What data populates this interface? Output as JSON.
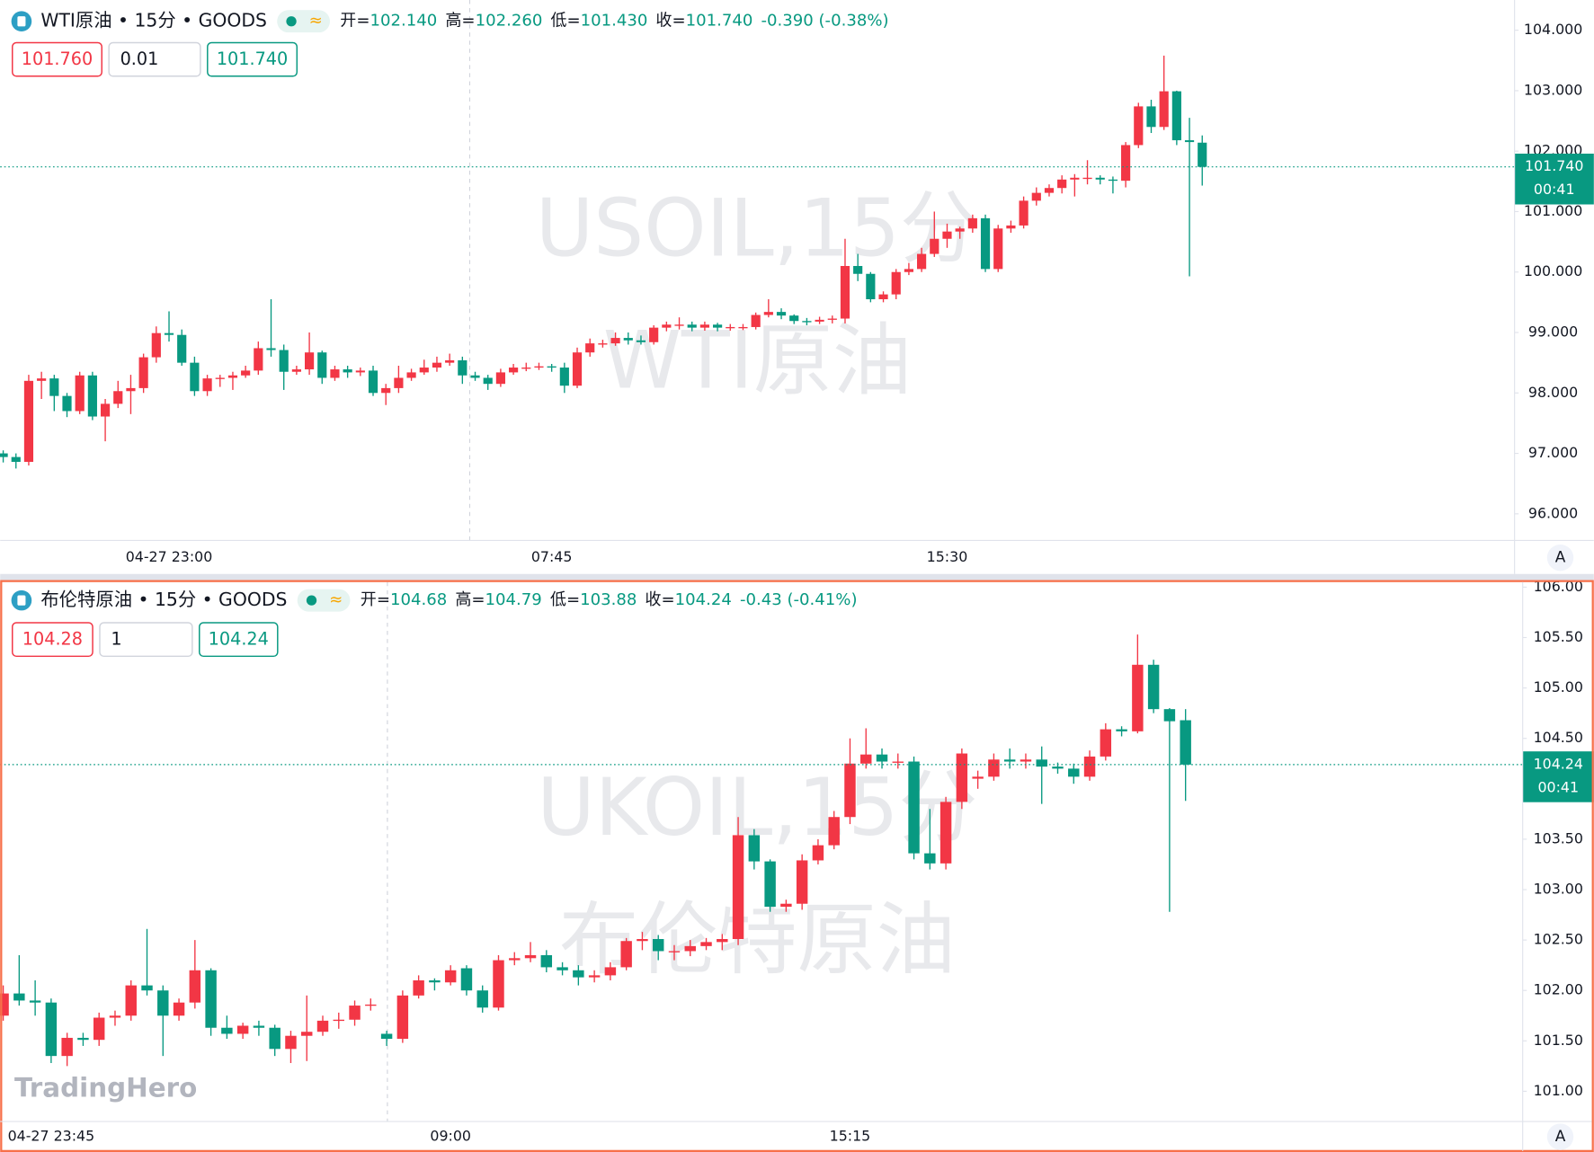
{
  "branding": "TradingHero",
  "auto_button": "A",
  "chart_data": [
    {
      "type": "candlestick",
      "symbol": "WTI原油 • 15分 • GOODS",
      "ohlc": [
        {
          "label": "开=",
          "value": "102.140"
        },
        {
          "label": "高=",
          "value": "102.260"
        },
        {
          "label": "低=",
          "value": "101.430"
        },
        {
          "label": "收=",
          "value": "101.740"
        }
      ],
      "change": "-0.390 (-0.38%)",
      "bid": "101.760",
      "size": "0.01",
      "ask": "101.740",
      "watermark": [
        "USOIL,15分",
        "WTI原油"
      ],
      "last_price_label": "101.740",
      "countdown": "00:41",
      "up_color": "#f23645",
      "down_color": "#089981",
      "ylim": [
        95.56,
        104.5
      ],
      "yticks": [
        {
          "value": 96,
          "label": "96.000"
        },
        {
          "value": 97,
          "label": "97.000"
        },
        {
          "value": 98,
          "label": "98.000"
        },
        {
          "value": 99,
          "label": "99.000"
        },
        {
          "value": 100,
          "label": "100.000"
        },
        {
          "value": 101,
          "label": "101.000"
        },
        {
          "value": 102,
          "label": "102.000"
        },
        {
          "value": 103,
          "label": "103.000"
        },
        {
          "value": 104,
          "label": "104.000"
        }
      ],
      "x": [
        null,
        null,
        null,
        null,
        null,
        null,
        null,
        null,
        null,
        null,
        null,
        null,
        null,
        "04-27 23:00",
        null,
        null,
        null,
        null,
        null,
        null,
        null,
        null,
        null,
        null,
        null,
        null,
        null,
        null,
        null,
        null,
        null,
        null,
        null,
        null,
        null,
        null,
        null,
        null,
        null,
        null,
        null,
        null,
        null,
        "07:45",
        null,
        null,
        null,
        null,
        null,
        null,
        null,
        null,
        null,
        null,
        null,
        null,
        null,
        null,
        null,
        null,
        null,
        null,
        null,
        null,
        null,
        null,
        null,
        null,
        null,
        null,
        null,
        null,
        null,
        null,
        "15:30",
        null,
        null,
        null,
        null,
        null,
        null,
        null,
        null,
        null,
        null,
        null,
        null,
        null,
        null,
        null,
        null,
        null,
        null,
        null,
        null
      ],
      "open": [
        97.0,
        96.94,
        96.86,
        98.2,
        98.24,
        97.95,
        97.7,
        98.29,
        97.61,
        97.82,
        98.03,
        98.08,
        98.59,
        98.99,
        98.96,
        98.5,
        98.03,
        98.24,
        98.25,
        98.29,
        98.37,
        98.74,
        98.71,
        98.35,
        98.39,
        98.67,
        98.25,
        98.39,
        98.34,
        98.37,
        98.0,
        98.08,
        98.25,
        98.34,
        98.42,
        98.5,
        98.54,
        98.29,
        98.25,
        98.15,
        98.34,
        98.42,
        98.42,
        98.44,
        98.42,
        98.12,
        98.67,
        98.82,
        98.82,
        98.91,
        98.87,
        98.84,
        99.08,
        99.13,
        99.13,
        99.08,
        99.13,
        99.08,
        99.09,
        99.09,
        99.29,
        99.34,
        99.28,
        99.19,
        99.18,
        99.21,
        99.23,
        100.1,
        99.97,
        99.55,
        99.63,
        100.0,
        100.05,
        100.3,
        100.55,
        100.67,
        100.72,
        100.89,
        100.05,
        100.72,
        100.77,
        101.18,
        101.31,
        101.39,
        101.53,
        101.56,
        101.56,
        101.53,
        101.51,
        102.1,
        102.74,
        102.4,
        102.99,
        102.18,
        102.14
      ],
      "high": [
        97.05,
        97.0,
        98.3,
        98.35,
        98.3,
        98.0,
        98.35,
        98.35,
        97.9,
        98.2,
        98.3,
        98.65,
        99.1,
        99.35,
        99.05,
        98.6,
        98.3,
        98.3,
        98.35,
        98.45,
        98.85,
        99.55,
        98.8,
        98.45,
        99.0,
        98.7,
        98.45,
        98.45,
        98.42,
        98.45,
        98.15,
        98.45,
        98.4,
        98.55,
        98.6,
        98.65,
        98.6,
        98.35,
        98.3,
        98.4,
        98.48,
        98.5,
        98.5,
        98.48,
        98.5,
        98.75,
        98.9,
        98.88,
        99.0,
        99.0,
        98.95,
        99.12,
        99.18,
        99.25,
        99.18,
        99.18,
        99.16,
        99.14,
        99.14,
        99.33,
        99.55,
        99.4,
        99.3,
        99.24,
        99.26,
        99.28,
        100.55,
        100.3,
        100.0,
        99.68,
        100.05,
        100.15,
        100.4,
        101.0,
        100.8,
        100.75,
        100.95,
        100.95,
        100.78,
        100.85,
        101.25,
        101.4,
        101.45,
        101.6,
        101.62,
        101.85,
        101.6,
        101.58,
        102.15,
        102.8,
        102.85,
        103.58,
        103.0,
        102.55,
        102.26
      ],
      "low": [
        96.85,
        96.75,
        96.8,
        97.9,
        97.7,
        97.6,
        97.65,
        97.55,
        97.2,
        97.75,
        97.65,
        98.0,
        98.5,
        98.85,
        98.45,
        97.95,
        97.95,
        98.1,
        98.05,
        98.25,
        98.3,
        98.6,
        98.05,
        98.3,
        98.3,
        98.15,
        98.2,
        98.25,
        98.28,
        97.95,
        97.8,
        98.0,
        98.2,
        98.3,
        98.35,
        98.45,
        98.15,
        98.2,
        98.05,
        98.1,
        98.3,
        98.36,
        98.38,
        98.35,
        98.0,
        98.08,
        98.6,
        98.75,
        98.78,
        98.8,
        98.8,
        98.8,
        99.02,
        99.05,
        99.02,
        99.03,
        99.02,
        99.03,
        99.04,
        99.05,
        99.25,
        99.22,
        99.14,
        99.12,
        99.14,
        99.15,
        99.15,
        99.85,
        99.5,
        99.5,
        99.55,
        99.95,
        100.0,
        100.25,
        100.4,
        100.55,
        100.65,
        100.0,
        100.0,
        100.65,
        100.72,
        101.1,
        101.25,
        101.3,
        101.25,
        101.45,
        101.45,
        101.3,
        101.4,
        102.05,
        102.3,
        102.35,
        102.1,
        99.93,
        101.43
      ],
      "close": [
        96.94,
        96.86,
        98.2,
        98.24,
        97.95,
        97.7,
        98.29,
        97.61,
        97.82,
        98.03,
        98.08,
        98.59,
        98.99,
        98.96,
        98.5,
        98.03,
        98.24,
        98.25,
        98.29,
        98.37,
        98.74,
        98.71,
        98.35,
        98.39,
        98.67,
        98.25,
        98.39,
        98.34,
        98.37,
        98.0,
        98.08,
        98.25,
        98.34,
        98.42,
        98.5,
        98.54,
        98.29,
        98.25,
        98.15,
        98.34,
        98.42,
        98.42,
        98.44,
        98.42,
        98.12,
        98.67,
        98.82,
        98.82,
        98.91,
        98.87,
        98.84,
        99.08,
        99.13,
        99.13,
        99.08,
        99.13,
        99.08,
        99.09,
        99.09,
        99.29,
        99.34,
        99.28,
        99.19,
        99.18,
        99.21,
        99.23,
        100.1,
        99.97,
        99.55,
        99.63,
        100.0,
        100.05,
        100.3,
        100.55,
        100.67,
        100.72,
        100.89,
        100.05,
        100.72,
        100.77,
        101.18,
        101.31,
        101.39,
        101.53,
        101.56,
        101.56,
        101.53,
        101.51,
        102.1,
        102.74,
        102.4,
        102.99,
        102.18,
        102.15,
        101.74
      ]
    },
    {
      "type": "candlestick",
      "symbol": "布伦特原油 • 15分 • GOODS",
      "ohlc": [
        {
          "label": "开=",
          "value": "104.68"
        },
        {
          "label": "高=",
          "value": "104.79"
        },
        {
          "label": "低=",
          "value": "103.88"
        },
        {
          "label": "收=",
          "value": "104.24"
        }
      ],
      "change": "-0.43 (-0.41%)",
      "bid": "104.28",
      "size": "1",
      "ask": "104.24",
      "watermark": [
        "UKOIL,15分",
        "布伦特原油"
      ],
      "last_price_label": "104.24",
      "countdown": "00:41",
      "up_color": "#f23645",
      "down_color": "#089981",
      "ylim": [
        100.7,
        106.05
      ],
      "yticks": [
        {
          "value": 101,
          "label": "101.00"
        },
        {
          "value": 101.5,
          "label": "101.50"
        },
        {
          "value": 102,
          "label": "102.00"
        },
        {
          "value": 102.5,
          "label": "102.50"
        },
        {
          "value": 103,
          "label": "103.00"
        },
        {
          "value": 103.5,
          "label": "103.50"
        },
        {
          "value": 104,
          "label": "104.00"
        },
        {
          "value": 104.5,
          "label": "104.50"
        },
        {
          "value": 105,
          "label": "105.00"
        },
        {
          "value": 105.5,
          "label": "105.50"
        },
        {
          "value": 106,
          "label": "106.00"
        }
      ],
      "x": [
        null,
        null,
        null,
        "04-27 23:45",
        null,
        null,
        null,
        null,
        null,
        null,
        null,
        null,
        null,
        null,
        null,
        null,
        null,
        null,
        null,
        null,
        null,
        null,
        null,
        null,
        null,
        null,
        null,
        null,
        "09:00",
        null,
        null,
        null,
        null,
        null,
        null,
        null,
        null,
        null,
        null,
        null,
        null,
        null,
        null,
        null,
        null,
        null,
        null,
        null,
        null,
        null,
        null,
        null,
        null,
        "15:15",
        null,
        null,
        null,
        null,
        null,
        null,
        null,
        null,
        null,
        null,
        null,
        null,
        null,
        null,
        null,
        null,
        null,
        null,
        null,
        null,
        null
      ],
      "open": [
        101.75,
        101.97,
        101.9,
        101.88,
        101.35,
        101.53,
        101.51,
        101.73,
        101.75,
        102.05,
        102.0,
        101.75,
        101.88,
        102.2,
        101.63,
        101.57,
        101.65,
        101.63,
        101.42,
        101.55,
        101.59,
        101.7,
        101.71,
        101.85,
        101.57,
        101.52,
        101.95,
        102.1,
        102.08,
        102.22,
        102.0,
        101.83,
        102.3,
        102.32,
        102.35,
        102.23,
        102.2,
        102.13,
        102.15,
        102.23,
        102.49,
        102.51,
        102.39,
        102.39,
        102.44,
        102.48,
        102.51,
        103.54,
        103.28,
        102.83,
        102.86,
        103.29,
        103.44,
        103.72,
        104.25,
        104.34,
        104.27,
        104.27,
        103.36,
        103.26,
        103.87,
        104.1,
        104.12,
        104.29,
        104.27,
        104.29,
        104.22,
        104.2,
        104.12,
        104.32,
        104.59,
        104.57,
        105.23,
        104.79,
        104.68
      ],
      "high": [
        102.05,
        102.35,
        102.1,
        101.92,
        101.58,
        101.58,
        101.78,
        101.8,
        102.1,
        102.61,
        102.05,
        101.92,
        102.5,
        102.22,
        101.75,
        101.68,
        101.7,
        101.66,
        101.6,
        101.95,
        101.75,
        101.78,
        101.9,
        101.92,
        101.6,
        102.0,
        102.15,
        102.12,
        102.25,
        102.25,
        102.05,
        102.35,
        102.38,
        102.48,
        102.4,
        102.28,
        102.25,
        102.2,
        102.28,
        102.52,
        102.58,
        102.55,
        102.45,
        102.5,
        102.52,
        102.56,
        103.72,
        103.6,
        103.3,
        102.9,
        103.35,
        103.5,
        103.78,
        104.5,
        104.6,
        104.4,
        104.35,
        104.32,
        103.8,
        103.92,
        104.4,
        104.18,
        104.35,
        104.4,
        104.35,
        104.42,
        104.26,
        104.25,
        104.38,
        104.65,
        104.62,
        105.53,
        105.28,
        104.8,
        104.79
      ],
      "low": [
        101.7,
        101.85,
        101.75,
        101.28,
        101.25,
        101.45,
        101.45,
        101.65,
        101.7,
        101.95,
        101.35,
        101.7,
        101.82,
        101.55,
        101.52,
        101.52,
        101.55,
        101.35,
        101.28,
        101.3,
        101.55,
        101.62,
        101.65,
        101.8,
        101.45,
        101.48,
        101.92,
        102.0,
        102.05,
        101.95,
        101.78,
        101.8,
        102.25,
        102.28,
        102.18,
        102.15,
        102.05,
        102.08,
        102.1,
        102.2,
        102.4,
        102.3,
        102.3,
        102.34,
        102.4,
        102.4,
        102.45,
        103.2,
        102.78,
        102.78,
        102.8,
        103.25,
        103.4,
        103.65,
        104.2,
        104.2,
        104.2,
        103.3,
        103.2,
        103.2,
        103.8,
        104.0,
        104.08,
        104.2,
        104.2,
        103.85,
        104.15,
        104.05,
        104.08,
        104.28,
        104.52,
        104.55,
        104.75,
        102.78,
        103.88
      ],
      "close": [
        101.97,
        101.9,
        101.88,
        101.35,
        101.53,
        101.51,
        101.73,
        101.75,
        102.05,
        102.0,
        101.75,
        101.88,
        102.2,
        101.63,
        101.57,
        101.65,
        101.63,
        101.42,
        101.55,
        101.59,
        101.7,
        101.71,
        101.85,
        101.86,
        101.52,
        101.95,
        102.1,
        102.08,
        102.2,
        102.0,
        101.83,
        102.3,
        102.32,
        102.35,
        102.23,
        102.2,
        102.13,
        102.15,
        102.23,
        102.49,
        102.51,
        102.39,
        102.39,
        102.44,
        102.48,
        102.51,
        103.54,
        103.28,
        102.83,
        102.86,
        103.29,
        103.44,
        103.72,
        104.25,
        104.34,
        104.27,
        104.27,
        103.36,
        103.26,
        103.87,
        104.35,
        104.12,
        104.29,
        104.27,
        104.29,
        104.22,
        104.2,
        104.12,
        104.32,
        104.59,
        104.57,
        105.23,
        104.79,
        104.67,
        104.24
      ]
    }
  ]
}
